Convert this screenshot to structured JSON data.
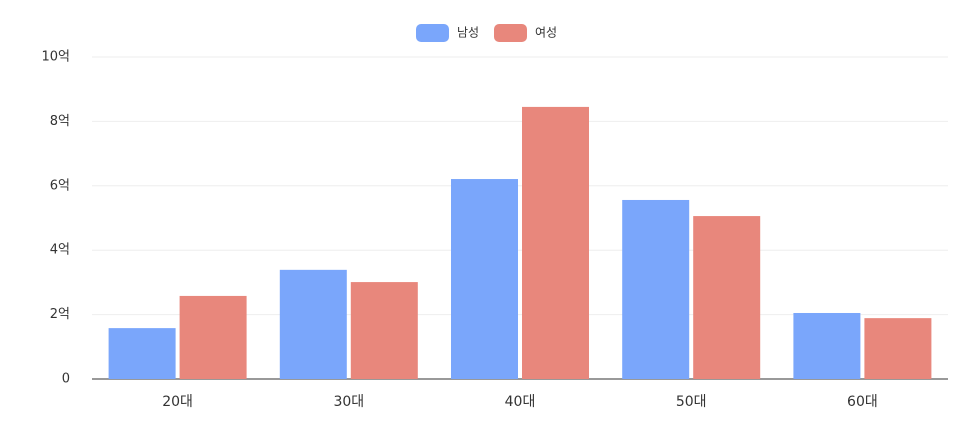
{
  "chart_data": {
    "type": "bar",
    "categories": [
      "20대",
      "30대",
      "40대",
      "50대",
      "60대"
    ],
    "series": [
      {
        "name": "남성",
        "color": "#7aa6fb",
        "values": [
          1.58,
          3.39,
          6.21,
          5.56,
          2.05
        ]
      },
      {
        "name": "여성",
        "color": "#e8877c",
        "values": [
          2.58,
          3.01,
          8.45,
          5.06,
          1.89
        ]
      }
    ],
    "ylim": [
      0,
      10
    ],
    "yticks": [
      0,
      {
        "value": 2,
        "label": "2억"
      },
      {
        "value": 4,
        "label": "4억"
      },
      {
        "value": 6,
        "label": "6억"
      },
      {
        "value": 8,
        "label": "8억"
      },
      {
        "value": 10,
        "label": "10억"
      }
    ],
    "grid": true,
    "legend": "top"
  }
}
